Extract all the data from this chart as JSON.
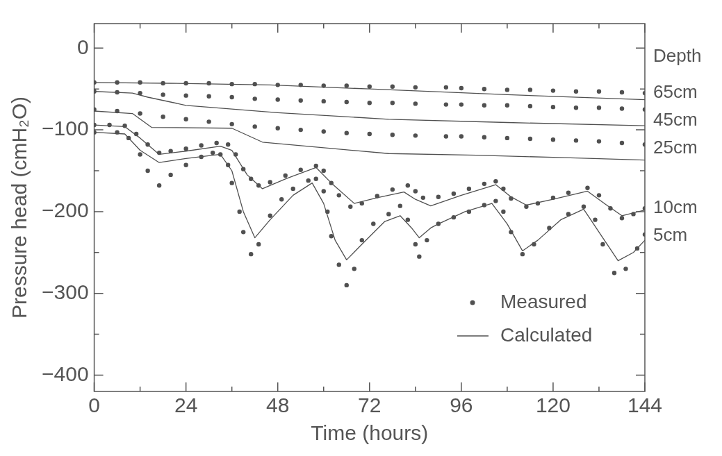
{
  "chart_data": {
    "type": "line",
    "xlabel": "Time (hours)",
    "ylabel": "Pressure head (cmH₂O)",
    "xlim": [
      0,
      144
    ],
    "ylim": [
      -420,
      30
    ],
    "xticks": [
      0,
      {
        "value": 12,
        "label": null
      },
      24,
      {
        "value": 36,
        "label": null
      },
      48,
      {
        "value": 60,
        "label": null
      },
      72,
      {
        "value": 84,
        "label": null
      },
      96,
      {
        "value": 108,
        "label": null
      },
      120,
      {
        "value": 132,
        "label": null
      },
      144
    ],
    "yticks": [
      0,
      {
        "value": -50,
        "label": null
      },
      -100,
      {
        "value": -150,
        "label": null
      },
      -200,
      {
        "value": -250,
        "label": null
      },
      -300,
      {
        "value": -350,
        "label": null
      },
      -400
    ],
    "grid": false,
    "legend": "bottom right",
    "annotations": [
      "Depth",
      "65cm",
      "45cm",
      "25cm",
      "10cm",
      "5cm"
    ],
    "series": [
      {
        "name": "Measured",
        "type": "scatter",
        "marker": "circle",
        "color": "#505050",
        "x": [
          0,
          6,
          12,
          18,
          24,
          30,
          36,
          42,
          48,
          54,
          60,
          66,
          72,
          78,
          84,
          92,
          96,
          102,
          108,
          114,
          120,
          126,
          132,
          138,
          144
        ],
        "values": [
          -42,
          -42,
          -42,
          -43,
          -43,
          -43,
          -44,
          -44,
          -45,
          -45,
          -46,
          -46,
          -47,
          -47,
          -48,
          -48,
          -49,
          -50,
          -51,
          -51,
          -52,
          -53,
          -53,
          -54,
          -55
        ]
      },
      {
        "type": "scatter",
        "marker": "circle",
        "color": "#505050",
        "x": [
          0,
          6,
          12,
          18,
          24,
          30,
          36,
          42,
          48,
          54,
          60,
          66,
          72,
          78,
          84,
          92,
          96,
          102,
          108,
          114,
          120,
          126,
          132,
          138,
          144
        ],
        "values": [
          -53,
          -54,
          -55,
          -57,
          -58,
          -59,
          -60,
          -62,
          -63,
          -64,
          -65,
          -66,
          -67,
          -67,
          -68,
          -69,
          -69,
          -70,
          -70,
          -71,
          -72,
          -73,
          -73,
          -74,
          -75
        ]
      },
      {
        "type": "scatter",
        "marker": "circle",
        "color": "#505050",
        "x": [
          0,
          6,
          12,
          18,
          24,
          30,
          36,
          42,
          48,
          54,
          60,
          66,
          72,
          78,
          84,
          92,
          96,
          102,
          108,
          114,
          120,
          126,
          132,
          138,
          144
        ],
        "values": [
          -75,
          -77,
          -80,
          -84,
          -87,
          -90,
          -93,
          -96,
          -98,
          -100,
          -102,
          -104,
          -105,
          -106,
          -107,
          -108,
          -108,
          -109,
          -110,
          -111,
          -112,
          -113,
          -114,
          -116,
          -118
        ]
      },
      {
        "type": "scatter",
        "marker": "circle",
        "color": "#505050",
        "x": [
          0,
          4,
          8,
          11,
          14,
          17,
          20,
          24,
          28,
          32,
          35,
          37,
          39,
          41,
          43,
          46,
          50,
          54,
          58,
          60,
          62,
          64,
          67,
          70,
          74,
          78,
          82,
          84,
          86,
          90,
          94,
          98,
          102,
          105,
          107,
          109,
          113,
          116,
          120,
          124,
          129,
          132,
          135,
          138,
          141,
          144
        ],
        "values": [
          -94,
          -94,
          -95,
          -105,
          -118,
          -128,
          -126,
          -123,
          -119,
          -116,
          -118,
          -130,
          -148,
          -160,
          -168,
          -164,
          -156,
          -149,
          -144,
          -150,
          -165,
          -180,
          -194,
          -190,
          -181,
          -173,
          -168,
          -175,
          -183,
          -182,
          -178,
          -172,
          -166,
          -163,
          -172,
          -184,
          -194,
          -190,
          -183,
          -177,
          -171,
          -180,
          -196,
          -208,
          -203,
          -196
        ]
      },
      {
        "type": "scatter",
        "marker": "circle",
        "color": "#505050",
        "x": [
          0,
          6,
          9,
          12,
          14,
          17,
          20,
          24,
          28,
          31,
          33,
          35,
          36,
          38,
          39,
          41,
          43,
          46,
          49,
          52,
          56,
          58,
          60,
          61,
          62,
          64,
          66,
          68,
          70,
          73,
          77,
          80,
          82,
          84,
          85,
          87,
          90,
          94,
          98,
          102,
          105,
          107,
          109,
          112,
          115,
          119,
          124,
          128,
          131,
          133,
          136,
          139,
          142,
          144
        ],
        "values": [
          -103,
          -103,
          -110,
          -130,
          -150,
          -168,
          -155,
          -143,
          -133,
          -128,
          -130,
          -143,
          -165,
          -200,
          -225,
          -252,
          -240,
          -205,
          -185,
          -172,
          -162,
          -160,
          -175,
          -200,
          -230,
          -265,
          -290,
          -270,
          -235,
          -215,
          -203,
          -193,
          -210,
          -240,
          -255,
          -235,
          -215,
          -207,
          -200,
          -192,
          -187,
          -200,
          -225,
          -252,
          -240,
          -220,
          -203,
          -194,
          -210,
          -240,
          -275,
          -270,
          -245,
          -228
        ]
      },
      {
        "name": "Calculated",
        "type": "line",
        "color": "#505050",
        "x": [
          0,
          20,
          46,
          72,
          108,
          144
        ],
        "values": [
          -42,
          -43,
          -45,
          -50,
          -57,
          -63
        ]
      },
      {
        "type": "line",
        "color": "#505050",
        "x": [
          0,
          10,
          14,
          24,
          48,
          77,
          108,
          144
        ],
        "values": [
          -53,
          -55,
          -60,
          -70,
          -79,
          -87,
          -91,
          -95
        ]
      },
      {
        "type": "line",
        "color": "#505050",
        "x": [
          0,
          10,
          15,
          36,
          44,
          77,
          100,
          123,
          144
        ],
        "values": [
          -77,
          -80,
          -97,
          -98,
          -115,
          -129,
          -131,
          -134,
          -137
        ]
      },
      {
        "type": "line",
        "color": "#505050",
        "x": [
          0,
          8,
          12,
          17,
          24,
          33,
          36,
          40,
          44,
          50,
          58,
          62,
          68,
          74,
          81,
          84,
          88,
          96,
          105,
          109,
          113,
          120,
          129,
          134,
          138,
          144
        ],
        "values": [
          -94,
          -96,
          -110,
          -130,
          -126,
          -120,
          -125,
          -155,
          -172,
          -160,
          -146,
          -165,
          -190,
          -183,
          -176,
          -185,
          -193,
          -180,
          -167,
          -182,
          -192,
          -185,
          -175,
          -192,
          -205,
          -198
        ]
      },
      {
        "type": "line",
        "color": "#505050",
        "x": [
          0,
          8,
          12,
          17,
          24,
          33,
          36,
          39,
          42,
          46,
          52,
          57,
          60,
          63,
          66,
          70,
          76,
          80,
          83,
          85,
          88,
          90,
          97,
          104,
          108,
          112,
          116,
          122,
          128,
          132,
          137,
          141,
          144
        ],
        "values": [
          -103,
          -105,
          -125,
          -140,
          -135,
          -130,
          -150,
          -200,
          -232,
          -210,
          -180,
          -165,
          -190,
          -235,
          -259,
          -240,
          -212,
          -205,
          -220,
          -232,
          -220,
          -215,
          -200,
          -190,
          -215,
          -248,
          -235,
          -210,
          -197,
          -225,
          -260,
          -250,
          -235
        ]
      }
    ]
  }
}
